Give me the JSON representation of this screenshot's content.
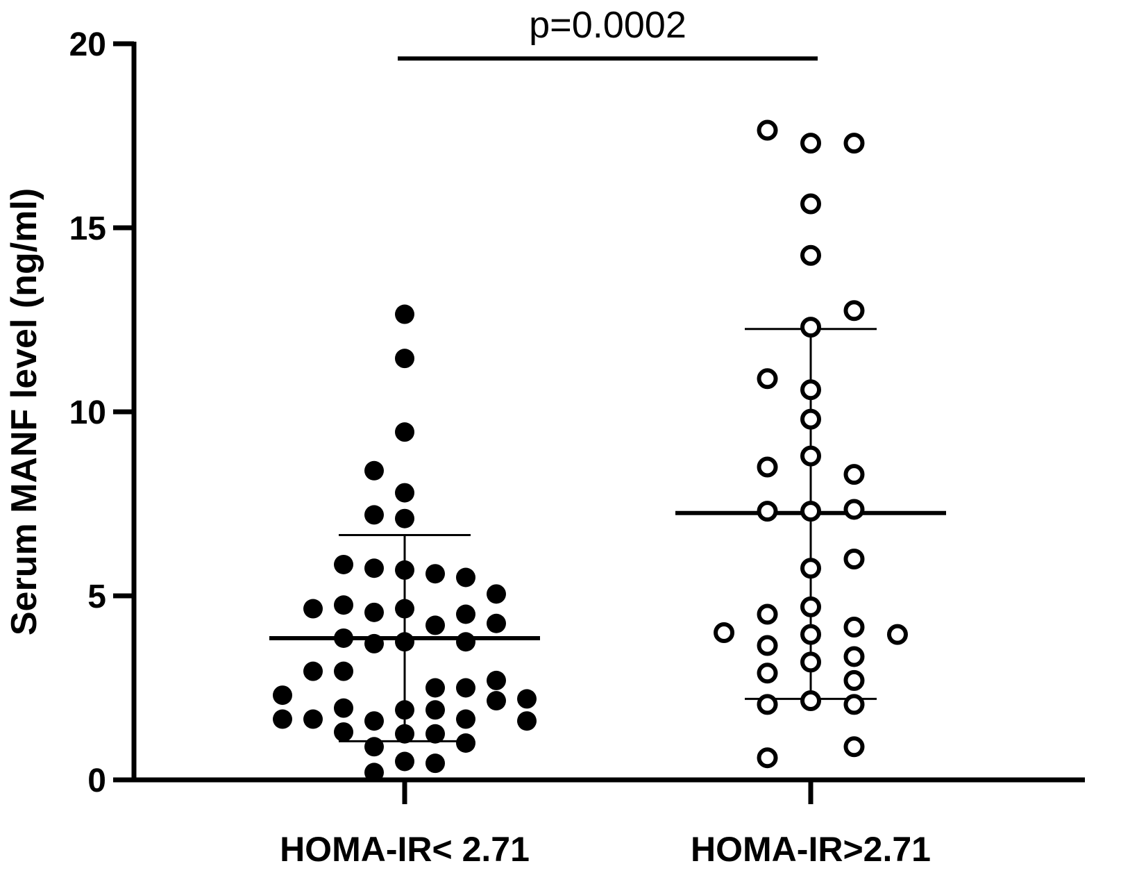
{
  "chart_data": {
    "type": "scatter",
    "title": "",
    "xlabel": "",
    "ylabel": "Serum MANF level (ng/ml)",
    "ylim": [
      0,
      20
    ],
    "yticks": [
      0,
      5,
      10,
      15,
      20
    ],
    "grid": false,
    "categories": [
      "HOMA-IR< 2.71",
      "HOMA-IR>2.71"
    ],
    "annotation": {
      "text": "p=0.0002",
      "from_category": 0,
      "to_category": 1,
      "y": 19.6
    },
    "series": [
      {
        "marker": "filled-circle",
        "category_index": 0,
        "median": 3.85,
        "iqr": [
          1.05,
          6.65
        ],
        "points": [
          {
            "offset": 0,
            "y": 12.65
          },
          {
            "offset": 0,
            "y": 11.45
          },
          {
            "offset": 0,
            "y": 9.45
          },
          {
            "offset": -1,
            "y": 8.4
          },
          {
            "offset": 0,
            "y": 7.8
          },
          {
            "offset": -1,
            "y": 7.2
          },
          {
            "offset": 0,
            "y": 7.1
          },
          {
            "offset": -2,
            "y": 5.85
          },
          {
            "offset": -1,
            "y": 5.75
          },
          {
            "offset": 0,
            "y": 5.7
          },
          {
            "offset": 1,
            "y": 5.6
          },
          {
            "offset": 2,
            "y": 5.5
          },
          {
            "offset": 3,
            "y": 5.05
          },
          {
            "offset": -3,
            "y": 4.65
          },
          {
            "offset": -2,
            "y": 4.75
          },
          {
            "offset": -1,
            "y": 4.55
          },
          {
            "offset": 0,
            "y": 4.65
          },
          {
            "offset": 1,
            "y": 4.2
          },
          {
            "offset": 2,
            "y": 4.5
          },
          {
            "offset": 3,
            "y": 4.25
          },
          {
            "offset": -2,
            "y": 3.85
          },
          {
            "offset": -1,
            "y": 3.7
          },
          {
            "offset": 0,
            "y": 3.75
          },
          {
            "offset": 2,
            "y": 3.75
          },
          {
            "offset": -3,
            "y": 2.95
          },
          {
            "offset": -2,
            "y": 2.95
          },
          {
            "offset": 3,
            "y": 2.7
          },
          {
            "offset": -4,
            "y": 2.3
          },
          {
            "offset": 1,
            "y": 2.5
          },
          {
            "offset": 2,
            "y": 2.5
          },
          {
            "offset": 4,
            "y": 2.2
          },
          {
            "offset": 3,
            "y": 2.15
          },
          {
            "offset": -2,
            "y": 1.95
          },
          {
            "offset": 0,
            "y": 1.9
          },
          {
            "offset": 1,
            "y": 1.9
          },
          {
            "offset": -4,
            "y": 1.65
          },
          {
            "offset": -3,
            "y": 1.65
          },
          {
            "offset": -1,
            "y": 1.6
          },
          {
            "offset": 2,
            "y": 1.65
          },
          {
            "offset": 4,
            "y": 1.6
          },
          {
            "offset": -2,
            "y": 1.3
          },
          {
            "offset": 0,
            "y": 1.25
          },
          {
            "offset": 1,
            "y": 1.25
          },
          {
            "offset": -1,
            "y": 0.9
          },
          {
            "offset": 2,
            "y": 1.0
          },
          {
            "offset": 0,
            "y": 0.5
          },
          {
            "offset": 1,
            "y": 0.45
          },
          {
            "offset": -1,
            "y": 0.2
          }
        ]
      },
      {
        "marker": "open-circle",
        "category_index": 1,
        "median": 7.25,
        "iqr": [
          2.2,
          12.25
        ],
        "points": [
          {
            "offset": -1,
            "y": 17.65
          },
          {
            "offset": 0,
            "y": 17.3
          },
          {
            "offset": 1,
            "y": 17.3
          },
          {
            "offset": 0,
            "y": 15.65
          },
          {
            "offset": 0,
            "y": 14.25
          },
          {
            "offset": 1,
            "y": 12.75
          },
          {
            "offset": 0,
            "y": 12.3
          },
          {
            "offset": -1,
            "y": 10.9
          },
          {
            "offset": 0,
            "y": 10.6
          },
          {
            "offset": 0,
            "y": 9.8
          },
          {
            "offset": 0,
            "y": 8.8
          },
          {
            "offset": -1,
            "y": 8.5
          },
          {
            "offset": 1,
            "y": 8.3
          },
          {
            "offset": -1,
            "y": 7.3
          },
          {
            "offset": 0,
            "y": 7.3
          },
          {
            "offset": 1,
            "y": 7.35
          },
          {
            "offset": 1,
            "y": 6.0
          },
          {
            "offset": 0,
            "y": 5.75
          },
          {
            "offset": 0,
            "y": 4.7
          },
          {
            "offset": -1,
            "y": 4.5
          },
          {
            "offset": 1,
            "y": 4.15
          },
          {
            "offset": -2,
            "y": 4.0
          },
          {
            "offset": 0,
            "y": 3.95
          },
          {
            "offset": 2,
            "y": 3.95
          },
          {
            "offset": -1,
            "y": 3.65
          },
          {
            "offset": 1,
            "y": 3.35
          },
          {
            "offset": 0,
            "y": 3.2
          },
          {
            "offset": -1,
            "y": 2.9
          },
          {
            "offset": 1,
            "y": 2.7
          },
          {
            "offset": 0,
            "y": 2.15
          },
          {
            "offset": -1,
            "y": 2.05
          },
          {
            "offset": 1,
            "y": 2.05
          },
          {
            "offset": 1,
            "y": 0.9
          },
          {
            "offset": -1,
            "y": 0.6
          }
        ]
      }
    ]
  }
}
